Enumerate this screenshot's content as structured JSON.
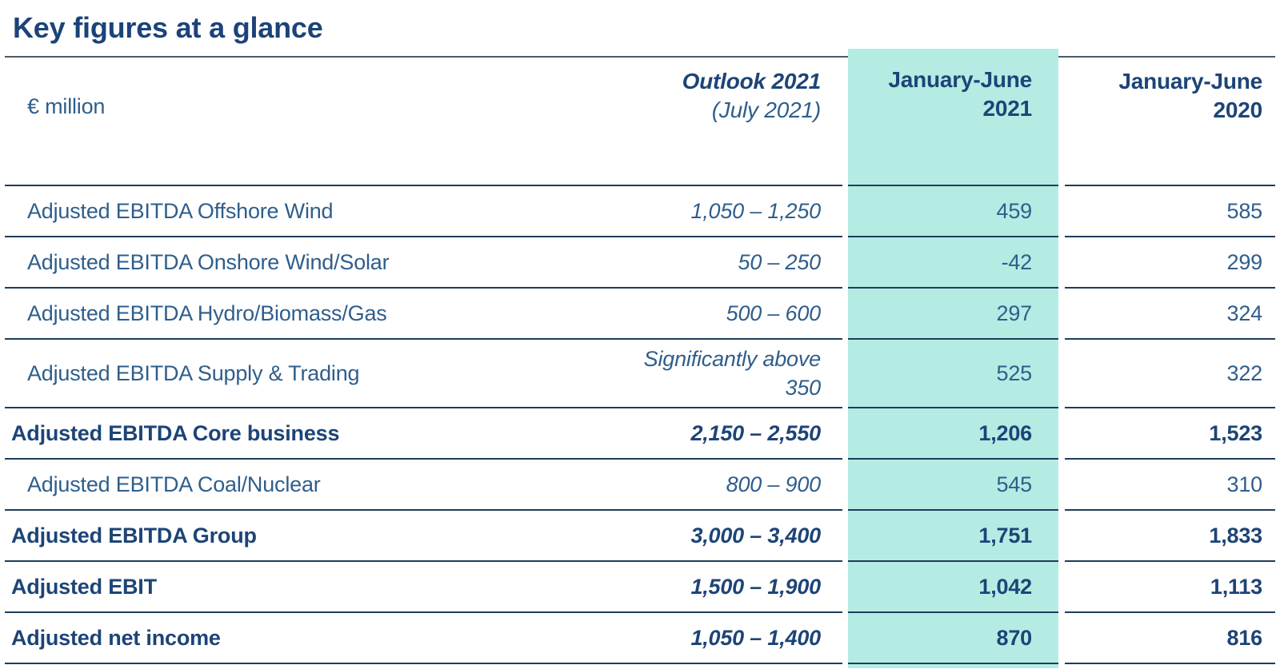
{
  "page": {
    "title": "Key figures at a glance"
  },
  "table": {
    "unit_label": "€ million",
    "columns": [
      {
        "line1": "Outlook 2021",
        "line2": "(July 2021)",
        "highlighted": false
      },
      {
        "line1": "January-June",
        "line2": "2021",
        "highlighted": true
      },
      {
        "line1": "January-June",
        "line2": "2020",
        "highlighted": false
      }
    ],
    "rows": [
      {
        "label": "Adjusted EBITDA Offshore Wind",
        "outlook": "1,050 – 1,250",
        "h1_2021": "459",
        "h1_2020": "585",
        "style": "regular",
        "tall": false
      },
      {
        "label": "Adjusted EBITDA Onshore Wind/Solar",
        "outlook": "50 – 250",
        "h1_2021": "-42",
        "h1_2020": "299",
        "style": "regular",
        "tall": false
      },
      {
        "label": "Adjusted EBITDA Hydro/Biomass/Gas",
        "outlook": "500 – 600",
        "h1_2021": "297",
        "h1_2020": "324",
        "style": "regular",
        "tall": false
      },
      {
        "label": "Adjusted EBITDA Supply & Trading",
        "outlook": "Significantly above\n350",
        "h1_2021": "525",
        "h1_2020": "322",
        "style": "regular",
        "tall": true
      },
      {
        "label": "Adjusted EBITDA Core business",
        "outlook": "2,150 – 2,550",
        "h1_2021": "1,206",
        "h1_2020": "1,523",
        "style": "bold",
        "tall": false
      },
      {
        "label": "Adjusted EBITDA Coal/Nuclear",
        "outlook": "800 – 900",
        "h1_2021": "545",
        "h1_2020": "310",
        "style": "regular",
        "tall": false
      },
      {
        "label": "Adjusted EBITDA Group",
        "outlook": "3,000 – 3,400",
        "h1_2021": "1,751",
        "h1_2020": "1,833",
        "style": "bold",
        "tall": false
      },
      {
        "label": "Adjusted EBIT",
        "outlook": "1,500 – 1,900",
        "h1_2021": "1,042",
        "h1_2020": "1,113",
        "style": "bold",
        "tall": false
      },
      {
        "label": "Adjusted net income",
        "outlook": "1,050 – 1,400",
        "h1_2021": "870",
        "h1_2020": "816",
        "style": "bold",
        "tall": false
      }
    ]
  },
  "colors": {
    "title_text": "#1c4379",
    "bold_text": "#1d4477",
    "regular_text": "#2f5e8c",
    "highlight": "#b4ece3",
    "rule_top": "#4d5a66",
    "rule": "#1e3c5c"
  }
}
